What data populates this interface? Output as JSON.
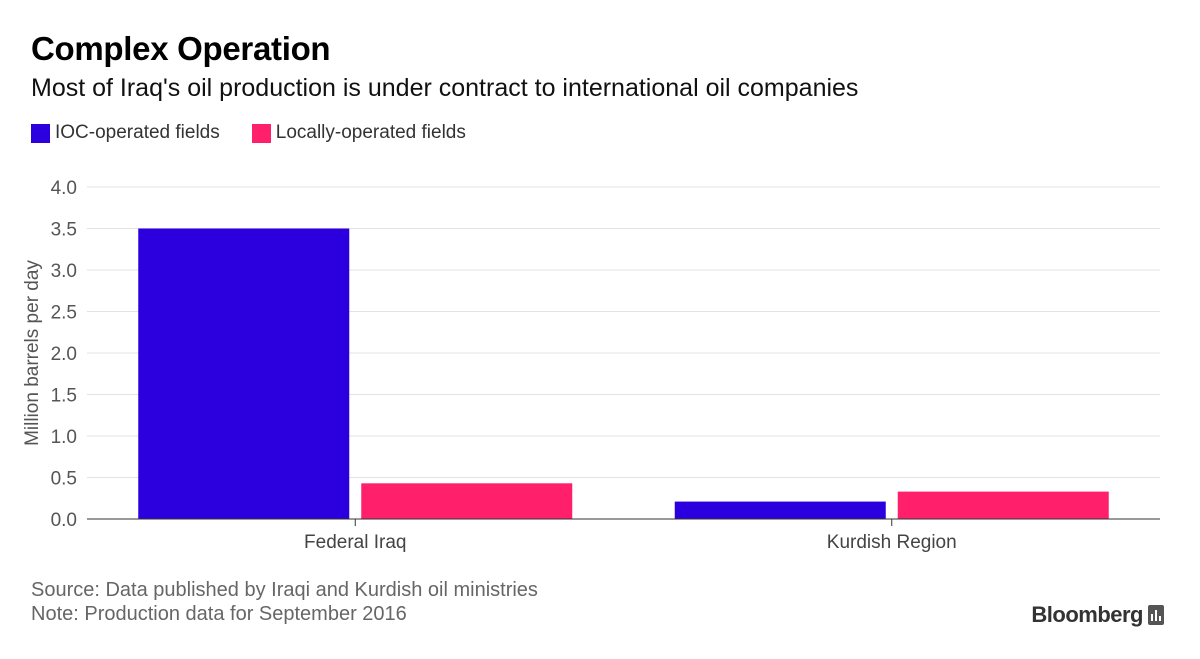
{
  "title": "Complex Operation",
  "subtitle": "Most of Iraq's oil production is under contract to international oil companies",
  "source": "Source: Data published by Iraqi and Kurdish oil ministries",
  "note": "Note: Production data for September 2016",
  "brand": "Bloomberg",
  "brand_icon": "bloomberg-chart-icon",
  "chart_data": {
    "type": "bar",
    "categories": [
      "Federal Iraq",
      "Kurdish Region"
    ],
    "series": [
      {
        "name": "IOC-operated fields",
        "color": "#2c00de",
        "values": [
          3.5,
          0.21
        ]
      },
      {
        "name": "Locally-operated fields",
        "color": "#ff1f6b",
        "values": [
          0.43,
          0.33
        ]
      }
    ],
    "ylabel": "Million barrels per day",
    "xlabel": "",
    "ylim": [
      0,
      4.0
    ],
    "yticks": [
      "0.0",
      "0.5",
      "1.0",
      "1.5",
      "2.0",
      "2.5",
      "3.0",
      "3.5",
      "4.0"
    ],
    "grid": true,
    "legend_position": "top-left"
  }
}
